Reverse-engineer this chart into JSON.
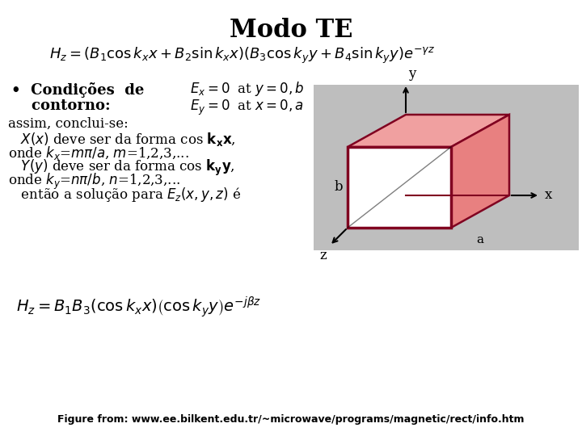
{
  "title": "Modo TE",
  "title_fontsize": 22,
  "background_color": "#ffffff",
  "formula1": "$H_z = (B_1\\cos k_x x + B_2\\sin k_x x)(B_3\\cos k_y y + B_4\\sin k_y y)e^{-\\gamma z}$",
  "formula1_fontsize": 13,
  "bullet_label": "•  Condições  de",
  "bullet_label2": "    contorno:",
  "bullet_fontsize": 13,
  "bc1": "$E_x = 0\\;$ at $y = 0, b$",
  "bc2": "$E_y = 0\\;$ at $x = 0, a$",
  "bc_fontsize": 12,
  "body_lines": [
    "assim, conclui-se:",
    "   $X(x)$ deve ser da forma cos $\\mathbf{k_x x}$,",
    "onde $k_x$=$m\\pi/a$, $m$=1,2,3,...",
    "   $Y(y)$ deve ser da forma cos $\\mathbf{k_y y}$,",
    "onde $k_y$=$n\\pi/b$, $n$=1,2,3,...",
    "   então a solução para $E_z(x,y,z)$ é"
  ],
  "body_fontsize": 12,
  "formula2": "$H_z = B_1 B_3\\left(\\cos k_x x\\right)\\left(\\cos k_y y\\right)e^{-j\\beta z}$",
  "formula2_fontsize": 14,
  "footer": "Figure from: www.ee.bilkent.edu.tr/~microwave/programs/magnetic/rect/info.htm",
  "footer_fontsize": 9,
  "fig_bg_color": "#bebebe",
  "waveguide_face_color": "#e88080",
  "waveguide_top_color": "#f0a0a0",
  "waveguide_edge_color": "#800020",
  "waveguide_front_color": "#ffffff"
}
